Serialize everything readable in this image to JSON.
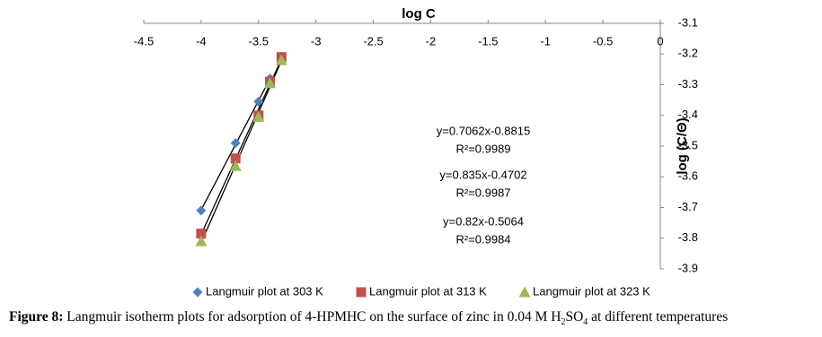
{
  "chart_data": {
    "type": "scatter",
    "xlabel": "log C",
    "ylabel": "log (C/Θ)",
    "xlim": [
      -4.5,
      0
    ],
    "xticks": [
      -4.5,
      -4,
      -3.5,
      -3,
      -2.5,
      -2,
      -1.5,
      -1,
      -0.5,
      0
    ],
    "ylim": [
      -3.9,
      -3.1
    ],
    "yticks": [
      -3.1,
      -3.2,
      -3.3,
      -3.4,
      -3.5,
      -3.6,
      -3.7,
      -3.8,
      -3.9
    ],
    "series": [
      {
        "name": "Langmuir plot at 303 K",
        "color": "#4f81bd",
        "marker": "diamond",
        "x": [
          -4,
          -3.7,
          -3.5,
          -3.4
        ],
        "values": [
          -3.71,
          -3.49,
          -3.355,
          -3.28
        ]
      },
      {
        "name": "Langmuir plot at 313 K",
        "color": "#c0504d",
        "marker": "square",
        "x": [
          -4,
          -3.7,
          -3.5,
          -3.4,
          -3.3
        ],
        "values": [
          -3.785,
          -3.54,
          -3.4,
          -3.29,
          -3.21
        ]
      },
      {
        "name": "Langmuir plot at 323 K",
        "color": "#9bbb59",
        "marker": "triangle",
        "x": [
          -4,
          -3.7,
          -3.5,
          -3.4,
          -3.3
        ],
        "values": [
          -3.81,
          -3.565,
          -3.405,
          -3.295,
          -3.22
        ]
      }
    ],
    "annotations": [
      "y=0.7062x-0.8815",
      "R²=0.9989",
      "y=0.835x-0.4702",
      "R²=0.9987",
      "y=0.82x-0.5064",
      "R²=0.9984"
    ]
  },
  "caption": {
    "label": "Figure 8:",
    "parts": [
      " Langmuir isotherm plots for adsorption of 4-HPMHC on the surface of zinc in 0.04 M H",
      "2",
      "SO",
      "4",
      " at different temperatures"
    ]
  }
}
